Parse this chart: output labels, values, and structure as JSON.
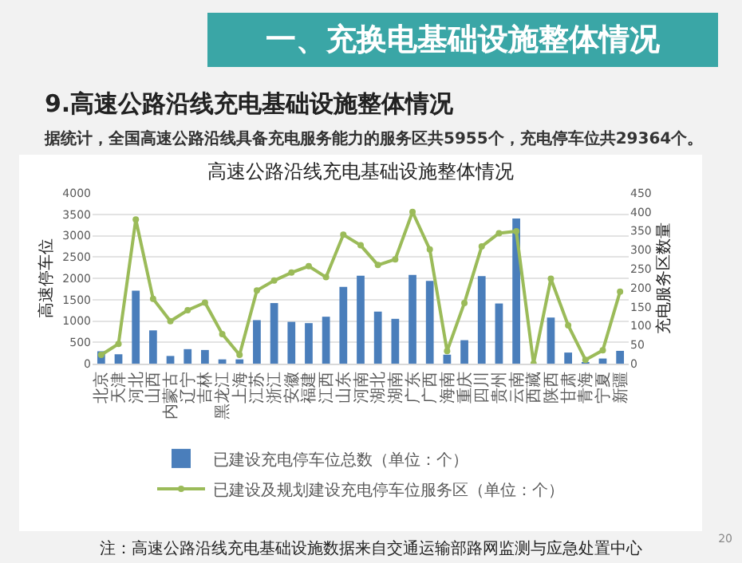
{
  "chart_data": {
    "type": "bar",
    "title": "高速公路沿线充电基础设施整体情况",
    "subtitle": "9.高速公路沿线充电基础设施整体情况",
    "annotations": [
      "一、充换电基础设施整体情况",
      "据统计，全国高速公路沿线具备充电服务能力的服务区共5955个，充电停车位共29364个。",
      "注：高速公路沿线充电基础设施数据来自交通运输部路网监测与应急处置中心",
      "20"
    ],
    "ylabel": "高速停车位",
    "y2label": "充电服务区数量",
    "categories": [
      "北京",
      "天津",
      "河北",
      "山西",
      "内蒙古",
      "辽宁",
      "吉林",
      "黑龙江",
      "上海",
      "江苏",
      "浙江",
      "安徽",
      "福建",
      "江西",
      "山东",
      "河南",
      "湖北",
      "湖南",
      "广东",
      "广西",
      "海南",
      "重庆",
      "四川",
      "贵州",
      "云南",
      "西藏",
      "陕西",
      "甘肃",
      "青海",
      "宁夏",
      "新疆"
    ],
    "series": [
      {
        "name": "已建设充电停车位总数（单位：个）",
        "color": "#4a7ebb",
        "values": [
          290,
          220,
          1710,
          780,
          180,
          340,
          320,
          100,
          100,
          1020,
          1420,
          980,
          950,
          1100,
          1800,
          2060,
          1220,
          1050,
          2080,
          1940,
          210,
          550,
          2050,
          1410,
          3400,
          0,
          1080,
          260,
          10,
          120,
          300
        ]
      },
      {
        "name": "已建设及规划建设充电停车位服务区（单位：个）",
        "type": "line",
        "axis": "y2",
        "color": "#9bbb59",
        "values": [
          23,
          52,
          380,
          171,
          112,
          141,
          161,
          78,
          23,
          193,
          219,
          240,
          257,
          228,
          340,
          312,
          260,
          275,
          400,
          301,
          33,
          160,
          309,
          344,
          349,
          0,
          224,
          101,
          10,
          35,
          190
        ]
      }
    ],
    "ylim": [
      0,
      4000
    ],
    "yticks": [
      0,
      500,
      1000,
      1500,
      2000,
      2500,
      3000,
      3500,
      4000
    ],
    "y2lim": [
      0,
      450
    ],
    "y2ticks": [
      0,
      50,
      100,
      150,
      200,
      250,
      300,
      350,
      400,
      450
    ],
    "grid": "y",
    "legend": "bottom",
    "marker": "circle"
  }
}
